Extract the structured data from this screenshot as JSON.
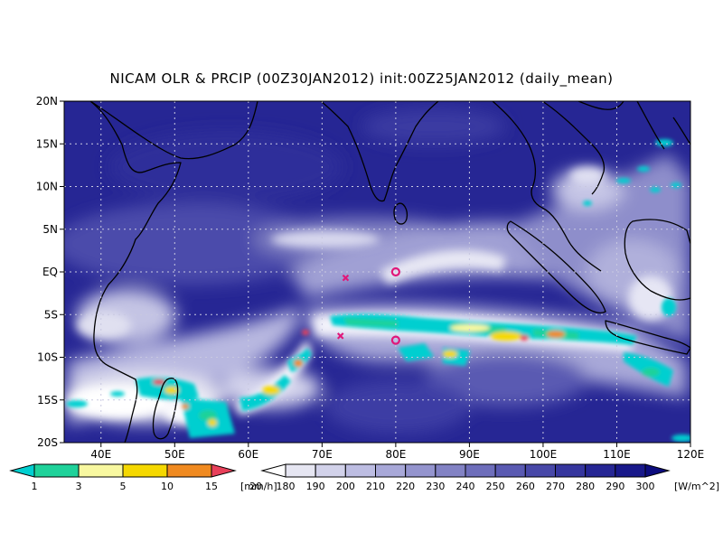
{
  "title": "NICAM OLR & PRCIP (00Z30JAN2012) init:00Z25JAN2012 (daily_mean)",
  "map": {
    "lon_range": [
      35,
      120
    ],
    "lat_range": [
      -20,
      20
    ],
    "lat_ticks": [
      {
        "value": 20,
        "label": "20N"
      },
      {
        "value": 15,
        "label": "15N"
      },
      {
        "value": 10,
        "label": "10N"
      },
      {
        "value": 5,
        "label": "5N"
      },
      {
        "value": 0,
        "label": "EQ"
      },
      {
        "value": -5,
        "label": "5S"
      },
      {
        "value": -10,
        "label": "10S"
      },
      {
        "value": -15,
        "label": "15S"
      },
      {
        "value": -20,
        "label": "20S"
      }
    ],
    "lon_ticks": [
      {
        "value": 40,
        "label": "40E"
      },
      {
        "value": 50,
        "label": "50E"
      },
      {
        "value": 60,
        "label": "60E"
      },
      {
        "value": 70,
        "label": "70E"
      },
      {
        "value": 80,
        "label": "80E"
      },
      {
        "value": 90,
        "label": "90E"
      },
      {
        "value": 100,
        "label": "100E"
      },
      {
        "value": 110,
        "label": "110E"
      },
      {
        "value": 120,
        "label": "120E"
      }
    ],
    "markers": [
      {
        "lon": 73.2,
        "lat": -0.7,
        "symbol": "x"
      },
      {
        "lon": 72.5,
        "lat": -7.5,
        "symbol": "x"
      },
      {
        "lon": 80,
        "lat": 0,
        "symbol": "o"
      },
      {
        "lon": 80,
        "lat": -8,
        "symbol": "o"
      }
    ],
    "marker_color": "#e0187a"
  },
  "precip_colorbar": {
    "labels": [
      "1",
      "3",
      "5",
      "10",
      "15",
      "20"
    ],
    "unit": "[mm/h]",
    "colors": [
      "#00cfd0",
      "#1fd29a",
      "#f8f8a0",
      "#f5d800",
      "#f08a20",
      "#e8405a"
    ]
  },
  "olr_colorbar": {
    "labels": [
      "180",
      "190",
      "200",
      "210",
      "220",
      "230",
      "240",
      "250",
      "260",
      "270",
      "280",
      "290",
      "300"
    ],
    "unit": "[W/m^2]",
    "colors": [
      "#ffffff",
      "#e6e6f2",
      "#d2d2ea",
      "#bdbde2",
      "#a8a8d8",
      "#9494ce",
      "#8282c4",
      "#6e6ebb",
      "#5a5ab2",
      "#4848a8",
      "#36369e",
      "#262694",
      "#18188a",
      "#0c0c7e"
    ]
  }
}
